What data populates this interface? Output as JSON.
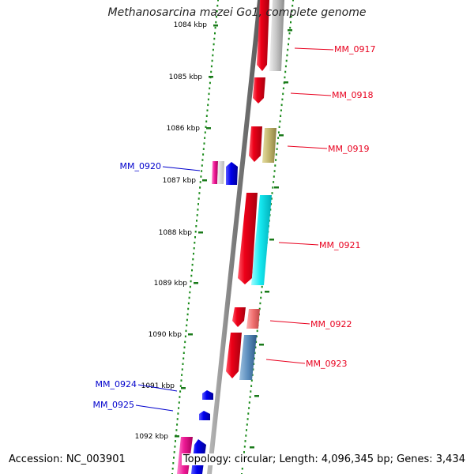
{
  "title": "Methanosarcina mazei Go1, complete genome",
  "accession": "Accession: NC_003901",
  "summary": "Topology: circular; Length: 4,096,345 bp; Genes: 3,434",
  "ticks": [
    "1084 kbp",
    "1085 kbp",
    "1086 kbp",
    "1087 kbp",
    "1088 kbp",
    "1089 kbp",
    "1090 kbp",
    "1091 kbp",
    "1092 kbp"
  ],
  "genes": [
    {
      "label": "MM_0917",
      "strand": "forward",
      "color": "#e8001e"
    },
    {
      "label": "MM_0918",
      "strand": "forward",
      "color": "#e8001e"
    },
    {
      "label": "MM_0919",
      "strand": "forward",
      "color": "#e8001e"
    },
    {
      "label": "MM_0920",
      "strand": "reverse",
      "color": "#0000cc"
    },
    {
      "label": "MM_0921",
      "strand": "forward",
      "color": "#e8001e"
    },
    {
      "label": "MM_0922",
      "strand": "forward",
      "color": "#e8001e"
    },
    {
      "label": "MM_0923",
      "strand": "forward",
      "color": "#e8001e"
    },
    {
      "label": "MM_0924",
      "strand": "reverse",
      "color": "#0000cc"
    },
    {
      "label": "MM_0925",
      "strand": "reverse",
      "color": "#0000cc"
    }
  ],
  "colors": {
    "forward_label": "#e8001e",
    "reverse_label": "#0000cc",
    "backbone": "#8a8a8a",
    "ticks": "#1a7a1a",
    "dots": "#1a8a1a"
  }
}
